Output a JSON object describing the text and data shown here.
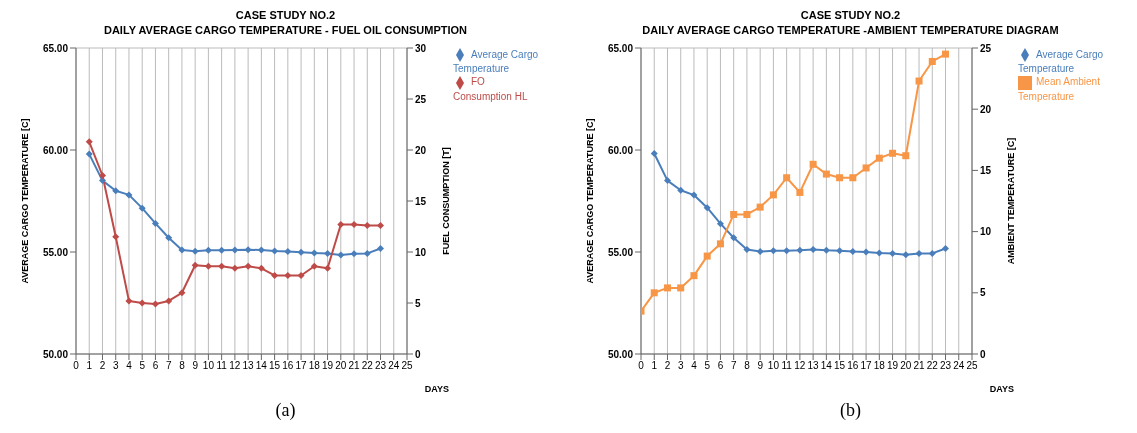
{
  "chart_data": [
    {
      "type": "line",
      "title": "CASE STUDY NO.2",
      "subtitle": "DAILY AVERAGE CARGO TEMPERATURE - FUEL OIL CONSUMPTION",
      "xlabel": "DAYS",
      "ylabel": "AVERAGE CARGO TEMPERATURE  [C]",
      "y2label": "FUEL CONSUMPTION  [T]",
      "annotations": [
        "(a)"
      ],
      "xlim": [
        0,
        25
      ],
      "xticks": [
        0,
        1,
        2,
        3,
        4,
        5,
        6,
        7,
        8,
        9,
        10,
        11,
        12,
        13,
        14,
        15,
        16,
        17,
        18,
        19,
        20,
        21,
        22,
        23,
        24,
        25
      ],
      "ylim": [
        50,
        65
      ],
      "yticks": [
        {
          "value": 50,
          "label": "50.00"
        },
        {
          "value": 55,
          "label": "55.00"
        },
        {
          "value": 60,
          "label": "60.00"
        },
        {
          "value": 65,
          "label": "65.00"
        }
      ],
      "y2lim": [
        0,
        30
      ],
      "y2ticks": [
        0,
        5,
        10,
        15,
        20,
        25,
        30
      ],
      "grid": true,
      "legend": "right",
      "series": [
        {
          "name": "Average Cargo Temperature",
          "color": "#4a7ebb",
          "marker": "diamond",
          "x": [
            1,
            2,
            3,
            4,
            5,
            6,
            7,
            8,
            9,
            10,
            11,
            12,
            13,
            14,
            15,
            16,
            17,
            18,
            19,
            20,
            21,
            22,
            23
          ],
          "values": [
            59.8,
            58.5,
            58.0,
            57.8,
            57.15,
            56.4,
            55.7,
            55.1,
            55.04,
            55.08,
            55.08,
            55.1,
            55.11,
            55.1,
            55.05,
            55.02,
            54.99,
            54.95,
            54.93,
            54.85,
            54.92,
            54.93,
            55.17
          ]
        },
        {
          "name": "FO Consumption HL",
          "color": "#be4b48",
          "marker": "diamond",
          "axis": "y2",
          "x": [
            1,
            2,
            3,
            4,
            5,
            6,
            7,
            8,
            9,
            10,
            11,
            12,
            13,
            14,
            15,
            16,
            17,
            18,
            19,
            20,
            21,
            22,
            23
          ],
          "values": [
            20.8,
            17.5,
            11.5,
            5.2,
            5.0,
            4.9,
            5.2,
            6.0,
            8.7,
            8.6,
            8.6,
            8.4,
            8.6,
            8.4,
            7.7,
            7.7,
            7.7,
            8.6,
            8.4,
            12.7,
            12.7,
            12.6,
            12.6
          ]
        }
      ]
    },
    {
      "type": "line",
      "title": "CASE STUDY NO.2",
      "subtitle": "DAILY AVERAGE CARGO TEMPERATURE -AMBIENT TEMPERATURE DIAGRAM",
      "xlabel": "DAYS",
      "ylabel": "AVERAGE CARGO TEMPERATURE [C]",
      "y2label": "AMBIENT TEMPERATURE [C]",
      "annotations": [
        "(b)"
      ],
      "xlim": [
        0,
        25
      ],
      "xticks": [
        0,
        1,
        2,
        3,
        4,
        5,
        6,
        7,
        8,
        9,
        10,
        11,
        12,
        13,
        14,
        15,
        16,
        17,
        18,
        19,
        20,
        21,
        22,
        23,
        24,
        25
      ],
      "ylim": [
        50,
        65
      ],
      "yticks": [
        {
          "value": 50,
          "label": "50.00"
        },
        {
          "value": 55,
          "label": "55.00"
        },
        {
          "value": 60,
          "label": "60.00"
        },
        {
          "value": 65,
          "label": "65.00"
        }
      ],
      "y2lim": [
        0,
        25
      ],
      "y2ticks": [
        0,
        5,
        10,
        15,
        20,
        25
      ],
      "grid": true,
      "legend": "right",
      "series": [
        {
          "name": "Average Cargo Temperature",
          "color": "#4a7ebb",
          "marker": "diamond",
          "x": [
            1,
            2,
            3,
            4,
            5,
            6,
            7,
            8,
            9,
            10,
            11,
            12,
            13,
            14,
            15,
            16,
            17,
            18,
            19,
            20,
            21,
            22,
            23
          ],
          "values": [
            59.83,
            58.5,
            58.03,
            57.79,
            57.17,
            56.39,
            55.7,
            55.12,
            55.02,
            55.06,
            55.06,
            55.08,
            55.12,
            55.08,
            55.06,
            55.02,
            55.0,
            54.95,
            54.93,
            54.86,
            54.93,
            54.93,
            55.17
          ]
        },
        {
          "name": "Mean Ambient Temperature",
          "color": "#f79646",
          "marker": "square",
          "axis": "y2",
          "x": [
            0,
            1,
            2,
            3,
            4,
            5,
            6,
            7,
            8,
            9,
            10,
            11,
            12,
            13,
            14,
            15,
            16,
            17,
            18,
            19,
            20,
            21,
            22,
            23
          ],
          "values": [
            3.5,
            5.0,
            5.4,
            5.4,
            6.4,
            8.0,
            9.0,
            11.4,
            11.4,
            12.0,
            13.0,
            14.4,
            13.2,
            15.5,
            14.7,
            14.4,
            14.4,
            15.2,
            16.0,
            16.4,
            16.2,
            22.3,
            23.9,
            24.5
          ]
        }
      ]
    }
  ]
}
